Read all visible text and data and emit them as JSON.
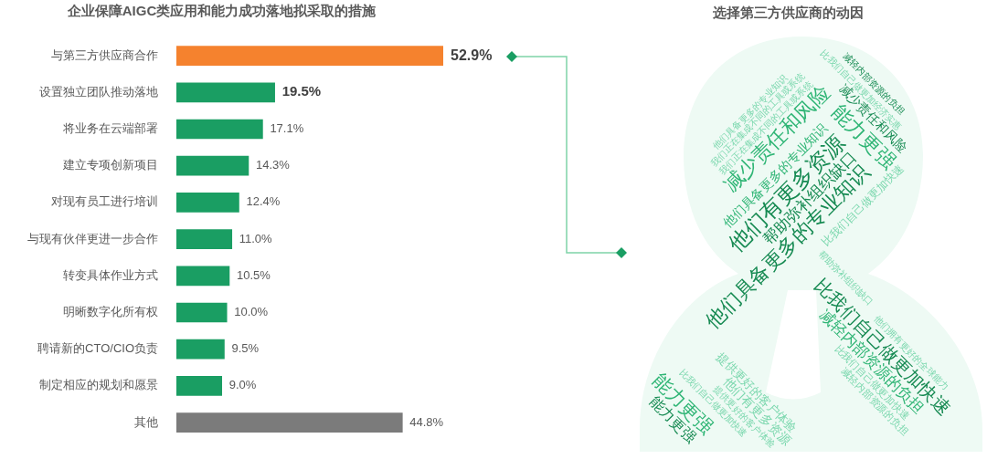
{
  "chart_data": [
    {
      "type": "bar",
      "orientation": "horizontal",
      "title": "企业保障AIGC类应用和能力成功落地拟采取的措施",
      "categories": [
        "与第三方供应商合作",
        "设置独立团队推动落地",
        "将业务在云端部署",
        "建立专项创新项目",
        "对现有员工进行培训",
        "与现有伙伴更进一步合作",
        "转变具体作业方式",
        "明晰数字化所有权",
        "聘请新的CTO/CIO负责",
        "制定相应的规划和愿景",
        "其他"
      ],
      "values": [
        52.9,
        19.5,
        17.1,
        14.3,
        12.4,
        11.0,
        10.5,
        10.0,
        9.5,
        9.0,
        44.8
      ],
      "colors": [
        "#f5822e",
        "#1a9e63",
        "#1a9e63",
        "#1a9e63",
        "#1a9e63",
        "#1a9e63",
        "#1a9e63",
        "#1a9e63",
        "#1a9e63",
        "#1a9e63",
        "#7b7b7b"
      ],
      "value_labels": [
        "52.9%",
        "19.5%",
        "17.1%",
        "14.3%",
        "12.4%",
        "11.0%",
        "10.5%",
        "10.0%",
        "9.5%",
        "9.0%",
        "44.8%"
      ],
      "tick_labels": "y"
    },
    {
      "type": "other",
      "title": "选择第三方供应商的动因",
      "annotations": [
        "他们具备更多的专业知识",
        "我们正在集成不同的工具或系统",
        "我们正在集成不同的工具或系统",
        "减少责任和风险",
        "他们具备更多的专业知识",
        "他们有更多资源",
        "帮助弥补组织缺口",
        "他们具备更多的专业知识",
        "比我们自己做更加快速",
        "能力更强",
        "减少责任和风险",
        "比我们自己做更加经济实惠",
        "减轻内部资源的负担",
        "帮助弥补组织缺口",
        "比我们自己做更加快速",
        "减轻内部资源的负担",
        "他们拥有更好的全球能力",
        "比我们自己做更加快速",
        "减轻内部资源的负担",
        "能力更强",
        "能力更强",
        "比我们自己做更加快速",
        "提供更好的客户体验",
        "他们有更多资源",
        "提供更好的客户体验"
      ]
    }
  ]
}
